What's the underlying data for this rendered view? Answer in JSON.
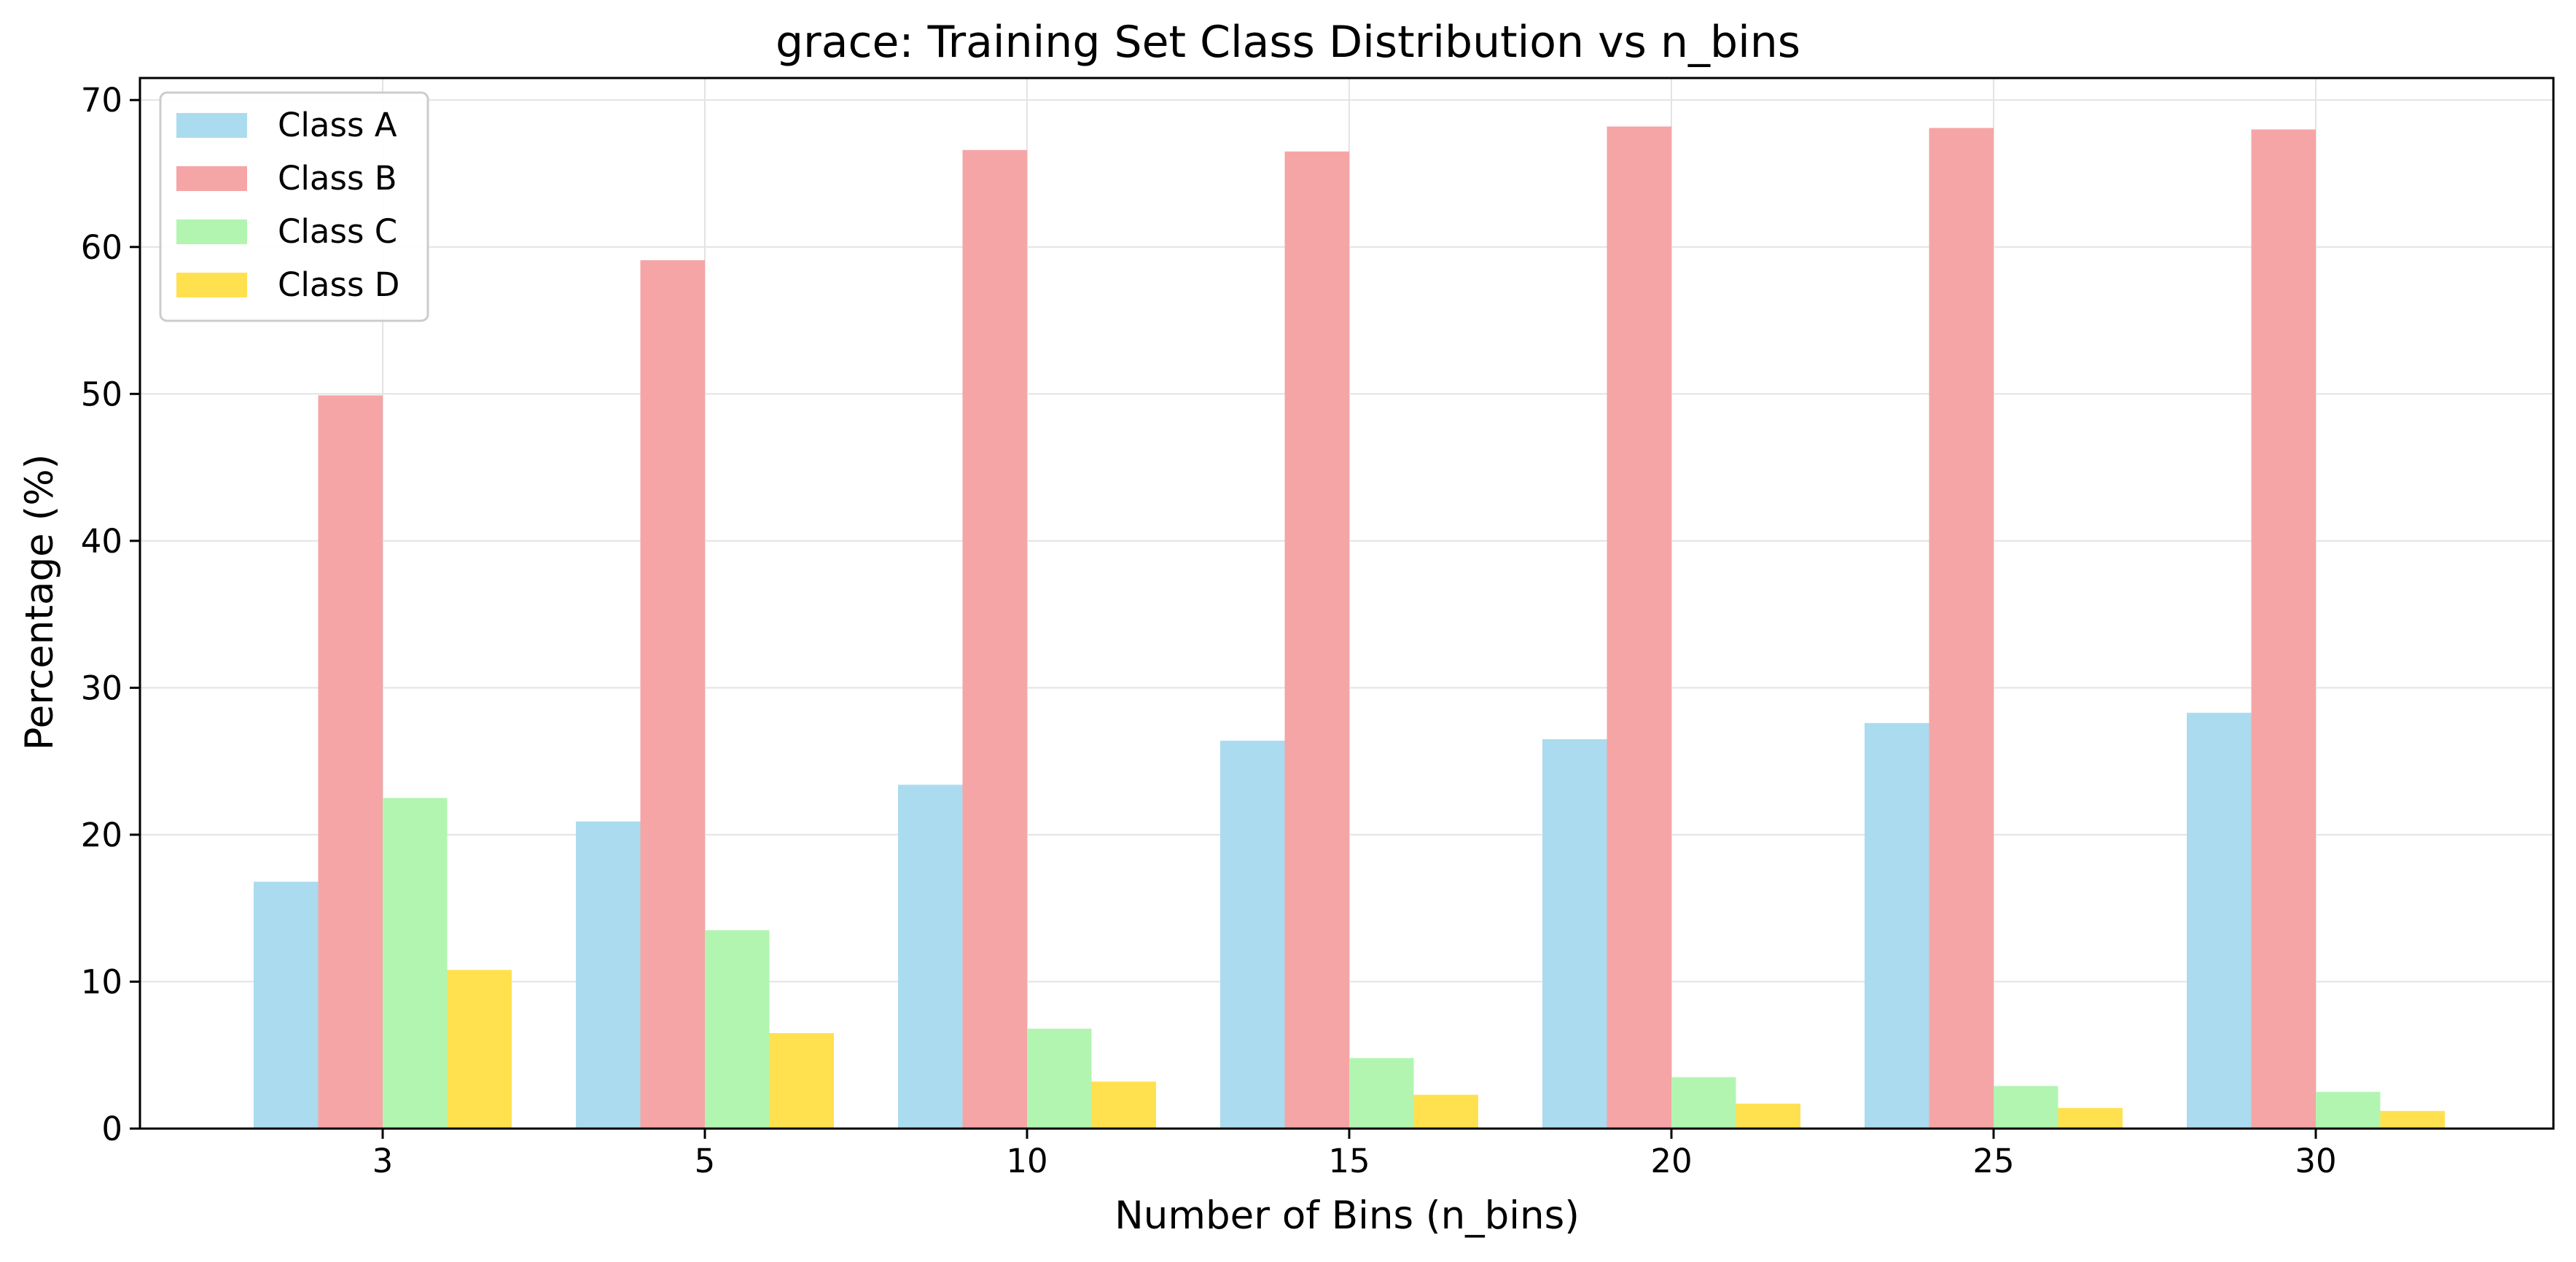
{
  "chart_data": {
    "type": "bar",
    "title": "grace: Training Set Class Distribution vs n_bins",
    "xlabel": "Number of Bins (n_bins)",
    "ylabel": "Percentage (%)",
    "categories": [
      "3",
      "5",
      "10",
      "15",
      "20",
      "25",
      "30"
    ],
    "ylim": [
      0,
      71.5
    ],
    "yticks": [
      "0",
      "10",
      "20",
      "30",
      "40",
      "50",
      "60",
      "70"
    ],
    "grid": true,
    "legend_position": "upper-left",
    "series": [
      {
        "name": "Class A",
        "color": "#ABDBEE",
        "values": [
          16.8,
          20.9,
          23.4,
          26.4,
          26.5,
          27.6,
          28.3
        ]
      },
      {
        "name": "Class B",
        "color": "#F5A5A6",
        "values": [
          49.9,
          59.1,
          66.6,
          66.5,
          68.2,
          68.1,
          68.0
        ]
      },
      {
        "name": "Class C",
        "color": "#B2F5B1",
        "values": [
          22.5,
          13.5,
          6.8,
          4.8,
          3.5,
          2.9,
          2.5
        ]
      },
      {
        "name": "Class D",
        "color": "#FFE14F",
        "values": [
          10.8,
          6.5,
          3.2,
          2.3,
          1.7,
          1.4,
          1.2
        ]
      }
    ]
  }
}
